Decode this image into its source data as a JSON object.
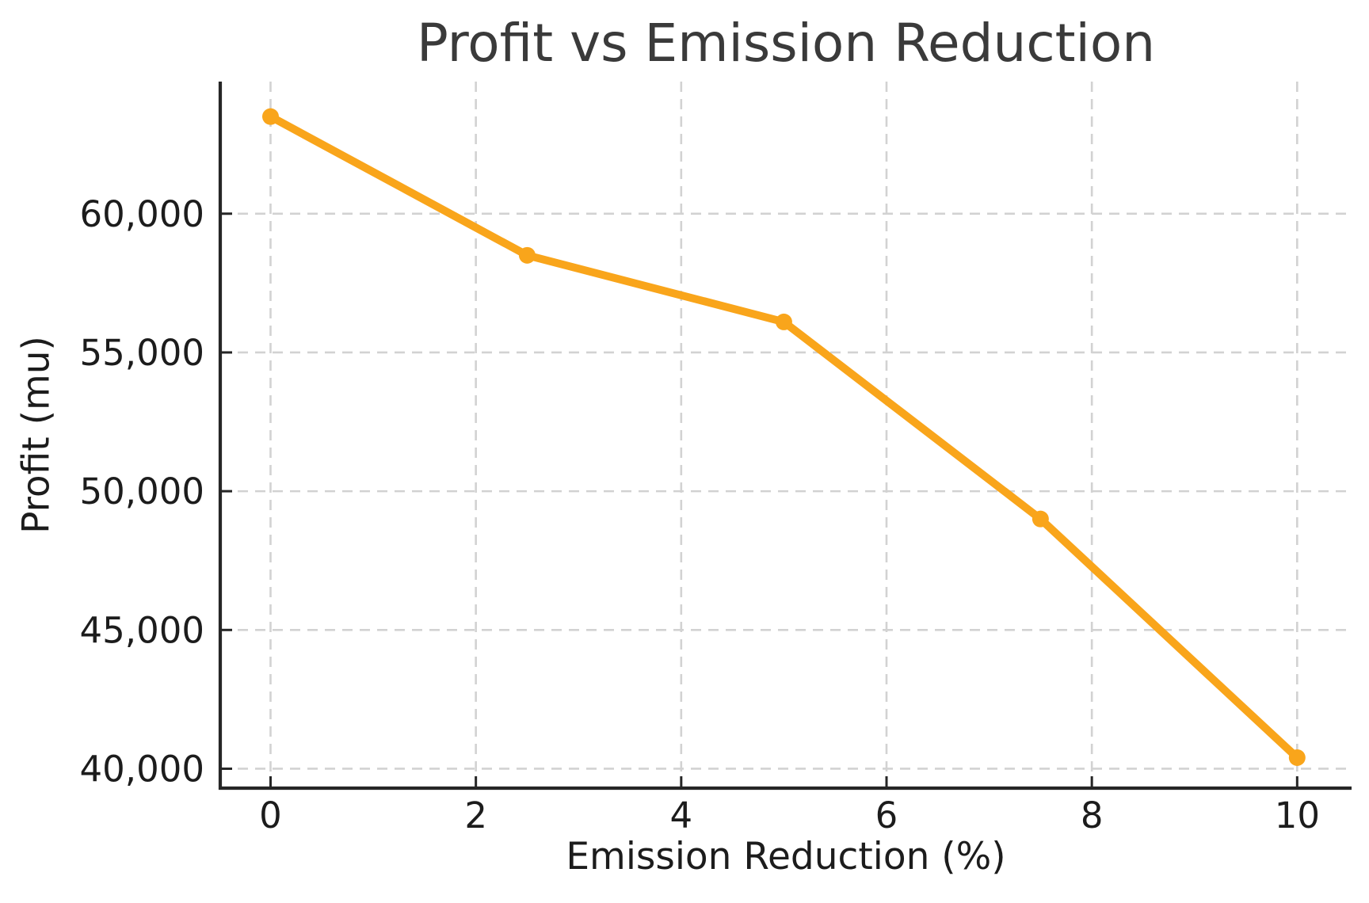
{
  "chart_data": {
    "type": "line",
    "title": "Profit vs Emission Reduction",
    "xlabel": "Emission Reduction (%)",
    "ylabel": "Profit (mu)",
    "series": [
      {
        "name": "Profit",
        "x": [
          0,
          2.5,
          5,
          7.5,
          10
        ],
        "y": [
          63500,
          58500,
          56100,
          49000,
          40400
        ]
      }
    ],
    "x_ticks": [
      0,
      2,
      4,
      6,
      8,
      10
    ],
    "x_tick_labels": [
      "0",
      "2",
      "4",
      "6",
      "8",
      "10"
    ],
    "y_ticks": [
      40000,
      45000,
      50000,
      55000,
      60000
    ],
    "y_tick_labels": [
      "40,000",
      "45,000",
      "50,000",
      "55,000",
      "60,000"
    ],
    "xlim": [
      -0.49,
      10.53
    ],
    "ylim": [
      39300,
      64760
    ],
    "grid": true,
    "grid_style": "dashed",
    "legend": "none",
    "marker": "circle"
  },
  "colors": {
    "line": "#F9A51B",
    "marker": "#F9A51B",
    "grid": "#d2d2d2",
    "spine": "#262626",
    "tick_text": "#1c1c1c",
    "title_text": "#3a3a3a",
    "background": "#ffffff"
  }
}
